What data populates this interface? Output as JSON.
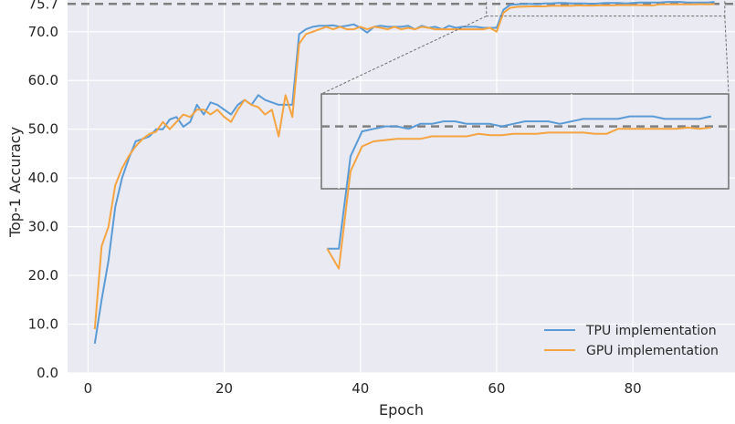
{
  "chart_data": {
    "type": "line",
    "title": "",
    "xlabel": "Epoch",
    "ylabel": "Top-1 Accuracy",
    "xlim": [
      -3,
      95
    ],
    "ylim": [
      0,
      76.5
    ],
    "xticks": [
      0,
      20,
      40,
      60,
      80
    ],
    "yticks": [
      0.0,
      10.0,
      20.0,
      30.0,
      40.0,
      50.0,
      60.0,
      70.0,
      75.7
    ],
    "ytick_labels": [
      "0.0",
      "10.0",
      "20.0",
      "30.0",
      "40.0",
      "50.0",
      "60.0",
      "70.0",
      "75.7"
    ],
    "reference_line": {
      "y": 75.7,
      "style": "dashed"
    },
    "grid": true,
    "legend": {
      "position": "bottom-right"
    },
    "inset": {
      "x_range": [
        58.5,
        93.5
      ],
      "y_range": [
        73.2,
        77.0
      ],
      "style": "zoom"
    },
    "series": [
      {
        "name": "TPU implementation",
        "color": "#5b9bd5",
        "x": [
          1,
          2,
          3,
          4,
          5,
          6,
          7,
          8,
          9,
          10,
          11,
          12,
          13,
          14,
          15,
          16,
          17,
          18,
          19,
          20,
          21,
          22,
          23,
          24,
          25,
          26,
          27,
          28,
          29,
          30,
          31,
          32,
          33,
          34,
          35,
          36,
          37,
          38,
          39,
          40,
          41,
          42,
          43,
          44,
          45,
          46,
          47,
          48,
          49,
          50,
          51,
          52,
          53,
          54,
          55,
          56,
          57,
          58,
          59,
          60,
          61,
          62,
          63,
          64,
          65,
          66,
          67,
          68,
          69,
          70,
          71,
          72,
          73,
          74,
          75,
          76,
          77,
          78,
          79,
          80,
          81,
          82,
          83,
          84,
          85,
          86,
          87,
          88,
          89,
          90,
          91,
          92
        ],
        "y": [
          6.0,
          15.0,
          23.0,
          34.0,
          40.0,
          44.0,
          47.5,
          48.0,
          48.5,
          50.0,
          50.0,
          52.0,
          52.5,
          50.5,
          51.5,
          55.0,
          53.0,
          55.5,
          55.0,
          54.0,
          53.0,
          55.0,
          56.0,
          55.0,
          57.0,
          56.0,
          55.5,
          55.0,
          55.0,
          55.0,
          69.5,
          70.5,
          71.0,
          71.2,
          71.2,
          71.3,
          71.0,
          71.2,
          71.5,
          70.8,
          69.8,
          71.0,
          71.2,
          71.0,
          71.0,
          71.0,
          71.2,
          70.5,
          71.2,
          70.8,
          71.0,
          70.5,
          71.2,
          70.8,
          71.0,
          71.0,
          71.0,
          70.8,
          70.8,
          70.8,
          74.5,
          75.5,
          75.6,
          75.7,
          75.7,
          75.6,
          75.8,
          75.8,
          75.9,
          75.9,
          75.8,
          75.8,
          75.8,
          75.7,
          75.8,
          75.9,
          75.9,
          75.9,
          75.8,
          75.9,
          76.0,
          76.0,
          76.0,
          76.0,
          76.1,
          76.1,
          76.1,
          76.0,
          76.0,
          76.0,
          76.0,
          76.1
        ]
      },
      {
        "name": "GPU implementation",
        "color": "#f5a442",
        "x": [
          1,
          2,
          3,
          4,
          5,
          6,
          7,
          8,
          9,
          10,
          11,
          12,
          13,
          14,
          15,
          16,
          17,
          18,
          19,
          20,
          21,
          22,
          23,
          24,
          25,
          26,
          27,
          28,
          29,
          30,
          31,
          32,
          33,
          34,
          35,
          36,
          37,
          38,
          39,
          40,
          41,
          42,
          43,
          44,
          45,
          46,
          47,
          48,
          49,
          50,
          51,
          52,
          53,
          54,
          55,
          56,
          57,
          58,
          59,
          60,
          61,
          62,
          63,
          64,
          65,
          66,
          67,
          68,
          69,
          70,
          71,
          72,
          73,
          74,
          75,
          76,
          77,
          78,
          79,
          80,
          81,
          82,
          83,
          84,
          85,
          86,
          87,
          88,
          89,
          90,
          91,
          92
        ],
        "y": [
          9.0,
          26.0,
          30.0,
          38.5,
          42.0,
          44.5,
          46.5,
          48.0,
          49.0,
          49.5,
          51.5,
          50.0,
          51.5,
          53.0,
          52.5,
          54.0,
          54.0,
          53.0,
          54.0,
          52.5,
          51.5,
          54.0,
          56.0,
          55.0,
          54.5,
          53.0,
          54.0,
          48.5,
          57.0,
          52.5,
          67.5,
          69.5,
          70.0,
          70.5,
          71.0,
          70.5,
          71.0,
          70.5,
          70.5,
          71.0,
          70.5,
          71.0,
          70.8,
          70.5,
          71.0,
          70.5,
          70.8,
          70.5,
          71.0,
          70.8,
          70.5,
          70.5,
          70.5,
          70.5,
          70.5,
          70.5,
          70.5,
          70.5,
          70.8,
          70.0,
          73.9,
          74.9,
          75.1,
          75.15,
          75.2,
          75.2,
          75.2,
          75.3,
          75.3,
          75.3,
          75.3,
          75.4,
          75.35,
          75.35,
          75.4,
          75.4,
          75.4,
          75.45,
          75.45,
          75.45,
          75.45,
          75.4,
          75.4,
          75.6,
          75.6,
          75.6,
          75.6,
          75.6,
          75.6,
          75.65,
          75.6,
          75.65
        ]
      }
    ]
  }
}
